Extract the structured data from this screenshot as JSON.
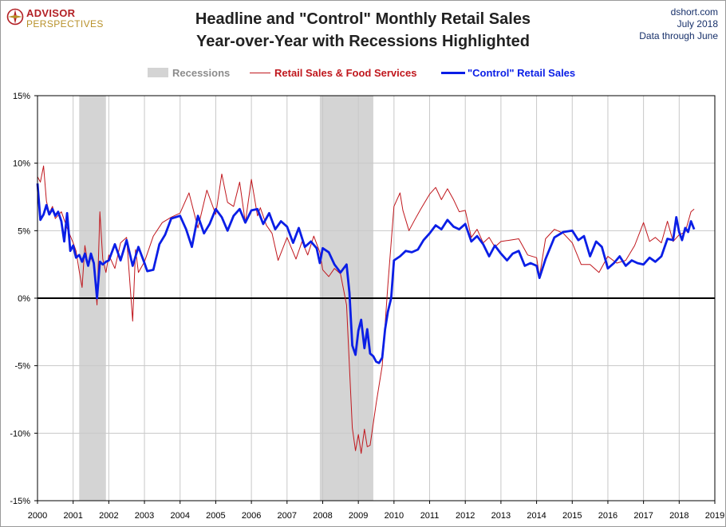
{
  "header": {
    "logo_top": "ADVISOR",
    "logo_bottom": "PERSPECTIVES",
    "title_line1": "Headline and \"Control\" Monthly Retail Sales",
    "title_line2": "Year-over-Year with Recessions Highlighted",
    "source_site": "dshort.com",
    "source_date": "July 2018",
    "source_note": "Data through June"
  },
  "legend": {
    "recessions": "Recessions",
    "headline": "Retail Sales & Food Services",
    "control": "\"Control\" Retail Sales"
  },
  "colors": {
    "headline": "#c0171d",
    "control": "#0a1ee6",
    "recession_band": "#d4d4d4",
    "recession_text": "#8c8c8c",
    "zero_line": "#000000",
    "grid": "#c8c8c8"
  },
  "chart_data": {
    "type": "line",
    "title": "Headline and \"Control\" Monthly Retail Sales Year-over-Year with Recessions Highlighted",
    "xlim": [
      2000,
      2019
    ],
    "ylim": [
      -15,
      15
    ],
    "x_ticks": [
      "2000",
      "2001",
      "2002",
      "2003",
      "2004",
      "2005",
      "2006",
      "2007",
      "2008",
      "2009",
      "2010",
      "2011",
      "2012",
      "2013",
      "2014",
      "2015",
      "2016",
      "2017",
      "2018",
      "2019"
    ],
    "y_ticks": [
      "15%",
      "10%",
      "5%",
      "0%",
      "-5%",
      "-10%",
      "-15%"
    ],
    "y_tick_values": [
      15,
      10,
      5,
      0,
      -5,
      -10,
      -15
    ],
    "grid": "vertical and horizontal",
    "legend_position": "top-center",
    "recessions": [
      {
        "start": 2001.17,
        "end": 2001.92
      },
      {
        "start": 2007.92,
        "end": 2009.42
      }
    ],
    "series": [
      {
        "name": "Retail Sales & Food Services",
        "x": [
          2000.0,
          2000.08,
          2000.17,
          2000.25,
          2000.33,
          2000.42,
          2000.5,
          2000.67,
          2000.83,
          2001.0,
          2001.08,
          2001.17,
          2001.25,
          2001.33,
          2001.42,
          2001.5,
          2001.58,
          2001.67,
          2001.75,
          2001.83,
          2001.92,
          2002.0,
          2002.17,
          2002.33,
          2002.5,
          2002.67,
          2002.75,
          2002.83,
          2003.0,
          2003.25,
          2003.5,
          2003.75,
          2004.0,
          2004.25,
          2004.5,
          2004.75,
          2005.0,
          2005.17,
          2005.33,
          2005.5,
          2005.67,
          2005.83,
          2006.0,
          2006.17,
          2006.25,
          2006.42,
          2006.58,
          2006.75,
          2007.0,
          2007.25,
          2007.42,
          2007.58,
          2007.75,
          2007.92,
          2008.0,
          2008.17,
          2008.33,
          2008.5,
          2008.67,
          2008.83,
          2008.92,
          2009.0,
          2009.08,
          2009.17,
          2009.25,
          2009.33,
          2009.5,
          2009.67,
          2009.83,
          2010.0,
          2010.17,
          2010.25,
          2010.42,
          2010.58,
          2010.75,
          2011.0,
          2011.17,
          2011.33,
          2011.5,
          2011.67,
          2011.83,
          2012.0,
          2012.17,
          2012.33,
          2012.5,
          2012.67,
          2012.83,
          2013.0,
          2013.25,
          2013.5,
          2013.75,
          2014.0,
          2014.08,
          2014.25,
          2014.5,
          2014.75,
          2015.0,
          2015.25,
          2015.5,
          2015.75,
          2016.0,
          2016.25,
          2016.5,
          2016.75,
          2017.0,
          2017.17,
          2017.33,
          2017.5,
          2017.67,
          2017.83,
          2018.0,
          2018.17,
          2018.33,
          2018.42
        ],
        "values": [
          9.0,
          8.6,
          9.8,
          7.2,
          6.3,
          6.8,
          5.9,
          6.4,
          5.2,
          4.1,
          3.5,
          2.0,
          0.8,
          3.9,
          2.4,
          3.0,
          2.5,
          -0.5,
          6.4,
          2.9,
          1.9,
          3.2,
          2.2,
          4.1,
          4.5,
          -1.7,
          3.6,
          1.9,
          2.7,
          4.6,
          5.6,
          6.0,
          6.3,
          7.8,
          5.2,
          8.0,
          6.2,
          9.2,
          7.1,
          6.8,
          8.6,
          5.6,
          8.8,
          6.1,
          6.7,
          5.4,
          4.8,
          2.8,
          4.5,
          2.9,
          4.2,
          3.2,
          4.6,
          3.4,
          2.1,
          1.6,
          2.2,
          1.8,
          -0.5,
          -9.6,
          -11.3,
          -10.1,
          -11.5,
          -9.7,
          -11.0,
          -10.9,
          -7.8,
          -5.0,
          1.0,
          6.8,
          7.8,
          6.5,
          5.0,
          5.8,
          6.6,
          7.7,
          8.2,
          7.3,
          8.1,
          7.3,
          6.4,
          6.5,
          4.5,
          5.1,
          4.1,
          4.5,
          3.8,
          4.2,
          4.3,
          4.4,
          3.2,
          3.0,
          1.6,
          4.4,
          5.1,
          4.8,
          4.1,
          2.5,
          2.5,
          1.9,
          3.1,
          2.6,
          2.8,
          3.9,
          5.6,
          4.2,
          4.5,
          4.1,
          5.7,
          4.2,
          4.7,
          4.9,
          6.4,
          6.6
        ]
      },
      {
        "name": "\"Control\" Retail Sales",
        "x": [
          2000.0,
          2000.08,
          2000.17,
          2000.25,
          2000.33,
          2000.42,
          2000.5,
          2000.58,
          2000.67,
          2000.75,
          2000.83,
          2000.92,
          2001.0,
          2001.08,
          2001.17,
          2001.25,
          2001.33,
          2001.42,
          2001.5,
          2001.58,
          2001.67,
          2001.75,
          2001.83,
          2001.92,
          2002.0,
          2002.17,
          2002.33,
          2002.5,
          2002.67,
          2002.83,
          2003.0,
          2003.08,
          2003.25,
          2003.42,
          2003.58,
          2003.75,
          2004.0,
          2004.17,
          2004.33,
          2004.5,
          2004.67,
          2004.83,
          2005.0,
          2005.17,
          2005.33,
          2005.5,
          2005.67,
          2005.83,
          2006.0,
          2006.17,
          2006.33,
          2006.5,
          2006.67,
          2006.83,
          2007.0,
          2007.17,
          2007.33,
          2007.5,
          2007.67,
          2007.83,
          2007.92,
          2008.0,
          2008.17,
          2008.33,
          2008.5,
          2008.67,
          2008.75,
          2008.83,
          2008.92,
          2009.0,
          2009.08,
          2009.17,
          2009.25,
          2009.33,
          2009.42,
          2009.5,
          2009.58,
          2009.67,
          2009.75,
          2009.83,
          2009.92,
          2010.0,
          2010.17,
          2010.33,
          2010.5,
          2010.67,
          2010.83,
          2011.0,
          2011.17,
          2011.33,
          2011.5,
          2011.67,
          2011.83,
          2012.0,
          2012.17,
          2012.33,
          2012.5,
          2012.67,
          2012.83,
          2013.0,
          2013.17,
          2013.33,
          2013.5,
          2013.67,
          2013.83,
          2014.0,
          2014.08,
          2014.25,
          2014.5,
          2014.75,
          2015.0,
          2015.17,
          2015.33,
          2015.5,
          2015.67,
          2015.83,
          2016.0,
          2016.17,
          2016.33,
          2016.5,
          2016.67,
          2016.83,
          2017.0,
          2017.17,
          2017.33,
          2017.5,
          2017.67,
          2017.83,
          2017.92,
          2018.0,
          2018.08,
          2018.17,
          2018.25,
          2018.33,
          2018.42
        ],
        "values": [
          8.5,
          5.8,
          6.2,
          6.9,
          6.2,
          6.6,
          6.1,
          6.4,
          5.7,
          4.2,
          6.3,
          3.5,
          3.9,
          3.0,
          3.2,
          2.7,
          3.3,
          2.4,
          3.3,
          2.6,
          0.0,
          2.7,
          2.5,
          2.7,
          2.8,
          4.0,
          2.8,
          4.3,
          2.4,
          3.8,
          2.6,
          2.0,
          2.1,
          4.0,
          4.7,
          5.9,
          6.1,
          5.1,
          3.8,
          6.1,
          4.8,
          5.5,
          6.6,
          6.0,
          5.0,
          6.1,
          6.6,
          5.6,
          6.5,
          6.6,
          5.5,
          6.3,
          5.1,
          5.7,
          5.3,
          4.1,
          5.2,
          3.8,
          4.2,
          3.7,
          2.6,
          3.7,
          3.4,
          2.5,
          1.9,
          2.5,
          0.4,
          -3.5,
          -4.2,
          -2.4,
          -1.6,
          -3.7,
          -2.3,
          -4.1,
          -4.3,
          -4.7,
          -4.8,
          -4.4,
          -2.3,
          -1.0,
          0.0,
          2.8,
          3.1,
          3.5,
          3.4,
          3.6,
          4.3,
          4.8,
          5.4,
          5.1,
          5.8,
          5.3,
          5.1,
          5.5,
          4.2,
          4.6,
          4.0,
          3.1,
          3.9,
          3.3,
          2.8,
          3.3,
          3.5,
          2.4,
          2.6,
          2.4,
          1.5,
          2.9,
          4.5,
          4.9,
          5.0,
          4.3,
          4.6,
          3.1,
          4.2,
          3.8,
          2.2,
          2.6,
          3.1,
          2.4,
          2.8,
          2.6,
          2.5,
          3.0,
          2.7,
          3.1,
          4.4,
          4.3,
          6.0,
          4.9,
          4.3,
          5.2,
          4.9,
          5.7,
          5.1
        ]
      }
    ]
  }
}
